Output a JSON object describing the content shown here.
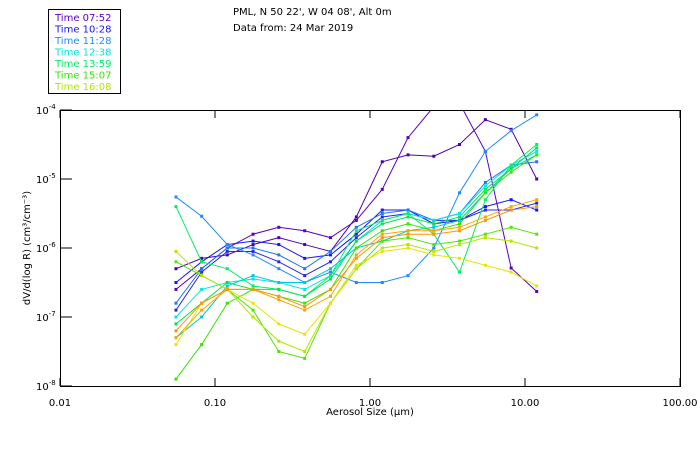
{
  "header": {
    "line1": "PML, N 50 22', W 04 08', Alt 0m",
    "line2": "Data from: 24 Mar 2019"
  },
  "legend": [
    {
      "label": "Time 07:52",
      "color": "#5a00c8"
    },
    {
      "label": "Time 10:28",
      "color": "#1414ff"
    },
    {
      "label": "Time 11:28",
      "color": "#1e8cff"
    },
    {
      "label": "Time 12:38",
      "color": "#00e6e6"
    },
    {
      "label": "Time 13:59",
      "color": "#00f064"
    },
    {
      "label": "Time 15:07",
      "color": "#32e600"
    },
    {
      "label": "Time 16:08",
      "color": "#b4e600"
    }
  ],
  "chart_data": {
    "type": "line",
    "xlabel": "Aerosol Size (μm)",
    "ylabel": "dV/d(log R) (cm³/cm⁻³)",
    "xscale": "log",
    "yscale": "log",
    "xlim": [
      0.01,
      100
    ],
    "ylim": [
      1e-08,
      0.0001
    ],
    "xticks": [
      {
        "value": 0.01,
        "label": "0.01"
      },
      {
        "value": 0.1,
        "label": "0.10"
      },
      {
        "value": 1,
        "label": "1.00"
      },
      {
        "value": 10,
        "label": "10.00"
      },
      {
        "value": 100,
        "label": "100.00"
      }
    ],
    "yticks": [
      {
        "value": 0.0001,
        "base": "10",
        "exp": "-4"
      },
      {
        "value": 1e-05,
        "base": "10",
        "exp": "-5"
      },
      {
        "value": 1e-06,
        "base": "10",
        "exp": "-6"
      },
      {
        "value": 1e-07,
        "base": "10",
        "exp": "-7"
      },
      {
        "value": 1e-08,
        "base": "10",
        "exp": "-8"
      }
    ],
    "legend_position": "top-left, outside plot",
    "x": [
      0.056,
      0.082,
      0.12,
      0.176,
      0.258,
      0.379,
      0.556,
      0.816,
      1.2,
      1.76,
      2.58,
      3.78,
      5.55,
      8.14,
      11.9
    ],
    "series_value_format": "log10 of dV/d(log R)",
    "series": [
      {
        "name": "Time 07:52",
        "color": "#5a00c8",
        "log10_values": [
          -6.6,
          -6.3,
          -6.0,
          -5.8,
          -5.7,
          -5.75,
          -5.85,
          -5.6,
          -5.15,
          -4.4,
          -3.95,
          -3.9,
          -4.6,
          -6.29,
          -6.63
        ]
      },
      {
        "name": "Time 07:52",
        "color": "#5000b4",
        "log10_values": [
          -6.3,
          -6.15,
          -6.1,
          -5.95,
          -5.85,
          -5.95,
          -6.05,
          -5.55,
          -4.75,
          -4.65,
          -4.67,
          -4.5,
          -4.14,
          -4.28,
          -5.0
        ]
      },
      {
        "name": "Time 10:28",
        "color": "#1414ff",
        "log10_values": [
          -6.5,
          -6.2,
          -5.95,
          -5.9,
          -5.95,
          -6.15,
          -6.1,
          -5.8,
          -5.45,
          -5.45,
          -5.65,
          -5.6,
          -5.4,
          -5.3,
          -5.45
        ]
      },
      {
        "name": "Time 10:28",
        "color": "#2828e6",
        "log10_values": [
          -6.9,
          -6.35,
          -6.05,
          -6.05,
          -6.2,
          -6.4,
          -6.2,
          -5.85,
          -5.55,
          -5.5,
          -5.6,
          -5.6,
          -5.45,
          -5.45,
          -5.35
        ]
      },
      {
        "name": "Time 11:28",
        "color": "#1e8cff",
        "log10_values": [
          -5.26,
          -5.54,
          -5.95,
          -6.1,
          -6.3,
          -6.5,
          -6.35,
          -6.5,
          -6.5,
          -6.4,
          -6.0,
          -5.2,
          -4.6,
          -4.3,
          -4.07
        ]
      },
      {
        "name": "Time 11:28",
        "color": "#1e78f0",
        "log10_values": [
          -6.8,
          -6.3,
          -6.0,
          -6.0,
          -6.1,
          -6.3,
          -6.05,
          -5.7,
          -5.5,
          -5.45,
          -5.6,
          -5.5,
          -5.05,
          -4.8,
          -4.75
        ]
      },
      {
        "name": "Time 12:38",
        "color": "#00e6e6",
        "log10_values": [
          -7.0,
          -6.6,
          -6.5,
          -6.45,
          -6.5,
          -6.6,
          -6.4,
          -5.9,
          -5.6,
          -5.5,
          -5.6,
          -5.5,
          -5.1,
          -4.8,
          -4.6
        ]
      },
      {
        "name": "Time 12:38",
        "color": "#00c8dc",
        "log10_values": [
          -7.3,
          -7.0,
          -6.55,
          -6.4,
          -6.5,
          -6.5,
          -6.3,
          -6.0,
          -5.9,
          -5.75,
          -5.7,
          -5.6,
          -5.2,
          -4.85,
          -4.65
        ]
      },
      {
        "name": "Time 13:59",
        "color": "#00f064",
        "log10_values": [
          -5.4,
          -6.2,
          -6.3,
          -6.55,
          -6.6,
          -6.7,
          -6.4,
          -5.75,
          -5.6,
          -5.5,
          -5.8,
          -6.35,
          -5.3,
          -4.8,
          -4.5
        ]
      },
      {
        "name": "Time 13:59",
        "color": "#00e650",
        "log10_values": [
          -7.1,
          -6.8,
          -6.5,
          -6.6,
          -6.6,
          -6.7,
          -6.45,
          -5.9,
          -5.65,
          -5.55,
          -5.65,
          -5.55,
          -5.15,
          -4.85,
          -4.55
        ]
      },
      {
        "name": "Time 15:07",
        "color": "#32e600",
        "log10_values": [
          -7.9,
          -7.4,
          -6.8,
          -6.6,
          -6.7,
          -6.8,
          -6.6,
          -6.0,
          -5.75,
          -5.65,
          -5.75,
          -5.65,
          -5.2,
          -4.9,
          -4.65
        ]
      },
      {
        "name": "Time 15:07",
        "color": "#50e600",
        "log10_values": [
          -6.2,
          -6.4,
          -6.6,
          -6.9,
          -7.5,
          -7.6,
          -6.8,
          -6.3,
          -5.9,
          -5.85,
          -5.95,
          -5.9,
          -5.8,
          -5.7,
          -5.8
        ]
      },
      {
        "name": "Time 16:08",
        "color": "#b4e600",
        "log10_values": [
          -6.05,
          -6.4,
          -6.6,
          -7.0,
          -7.35,
          -7.5,
          -6.8,
          -6.3,
          -6.0,
          -5.95,
          -6.05,
          -5.95,
          -5.85,
          -5.9,
          -6.0
        ]
      },
      {
        "name": "Time 16:08",
        "color": "#e6e600",
        "log10_values": [
          -7.4,
          -6.8,
          -6.6,
          -6.8,
          -7.1,
          -7.25,
          -6.8,
          -6.25,
          -6.05,
          -6.0,
          -6.1,
          -6.15,
          -6.25,
          -6.35,
          -6.55
        ]
      },
      {
        "name": "Time 16:08",
        "color": "#ffa500",
        "log10_values": [
          -7.3,
          -6.9,
          -6.6,
          -6.6,
          -6.75,
          -6.9,
          -6.7,
          -6.1,
          -5.8,
          -5.75,
          -5.75,
          -5.7,
          -5.55,
          -5.4,
          -5.3
        ]
      },
      {
        "name": "Time 16:08",
        "color": "#ff9600",
        "log10_values": [
          -7.2,
          -6.8,
          -6.6,
          -6.6,
          -6.7,
          -6.85,
          -6.6,
          -6.15,
          -5.85,
          -5.8,
          -5.8,
          -5.75,
          -5.6,
          -5.45,
          -5.4
        ]
      }
    ]
  }
}
